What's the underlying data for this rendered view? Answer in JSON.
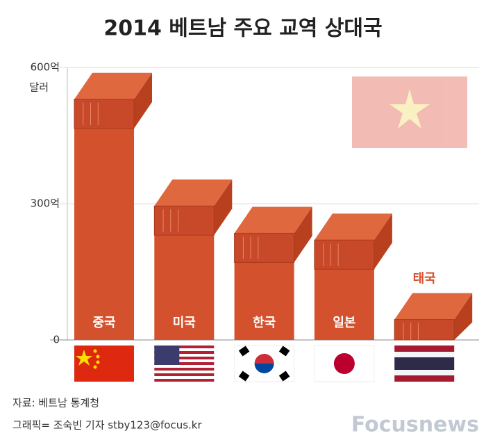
{
  "chart_data": {
    "type": "bar",
    "title": "2014 베트남 주요 교역 상대국",
    "y_unit": "달러",
    "categories": [
      "중국",
      "미국",
      "한국",
      "일본",
      "태국"
    ],
    "values": [
      530,
      295,
      235,
      220,
      45
    ],
    "color": "#d4512d",
    "ylim": [
      0,
      600
    ],
    "yticks": [
      0,
      {
        "value": 300,
        "label": "300억"
      },
      {
        "value": 600,
        "label": "600억"
      }
    ],
    "grid": true,
    "source": "자료: 베트남 통계청",
    "credit": "그래픽= 조숙빈 기자 stby123@focus.kr",
    "watermark": "Focusnews"
  }
}
